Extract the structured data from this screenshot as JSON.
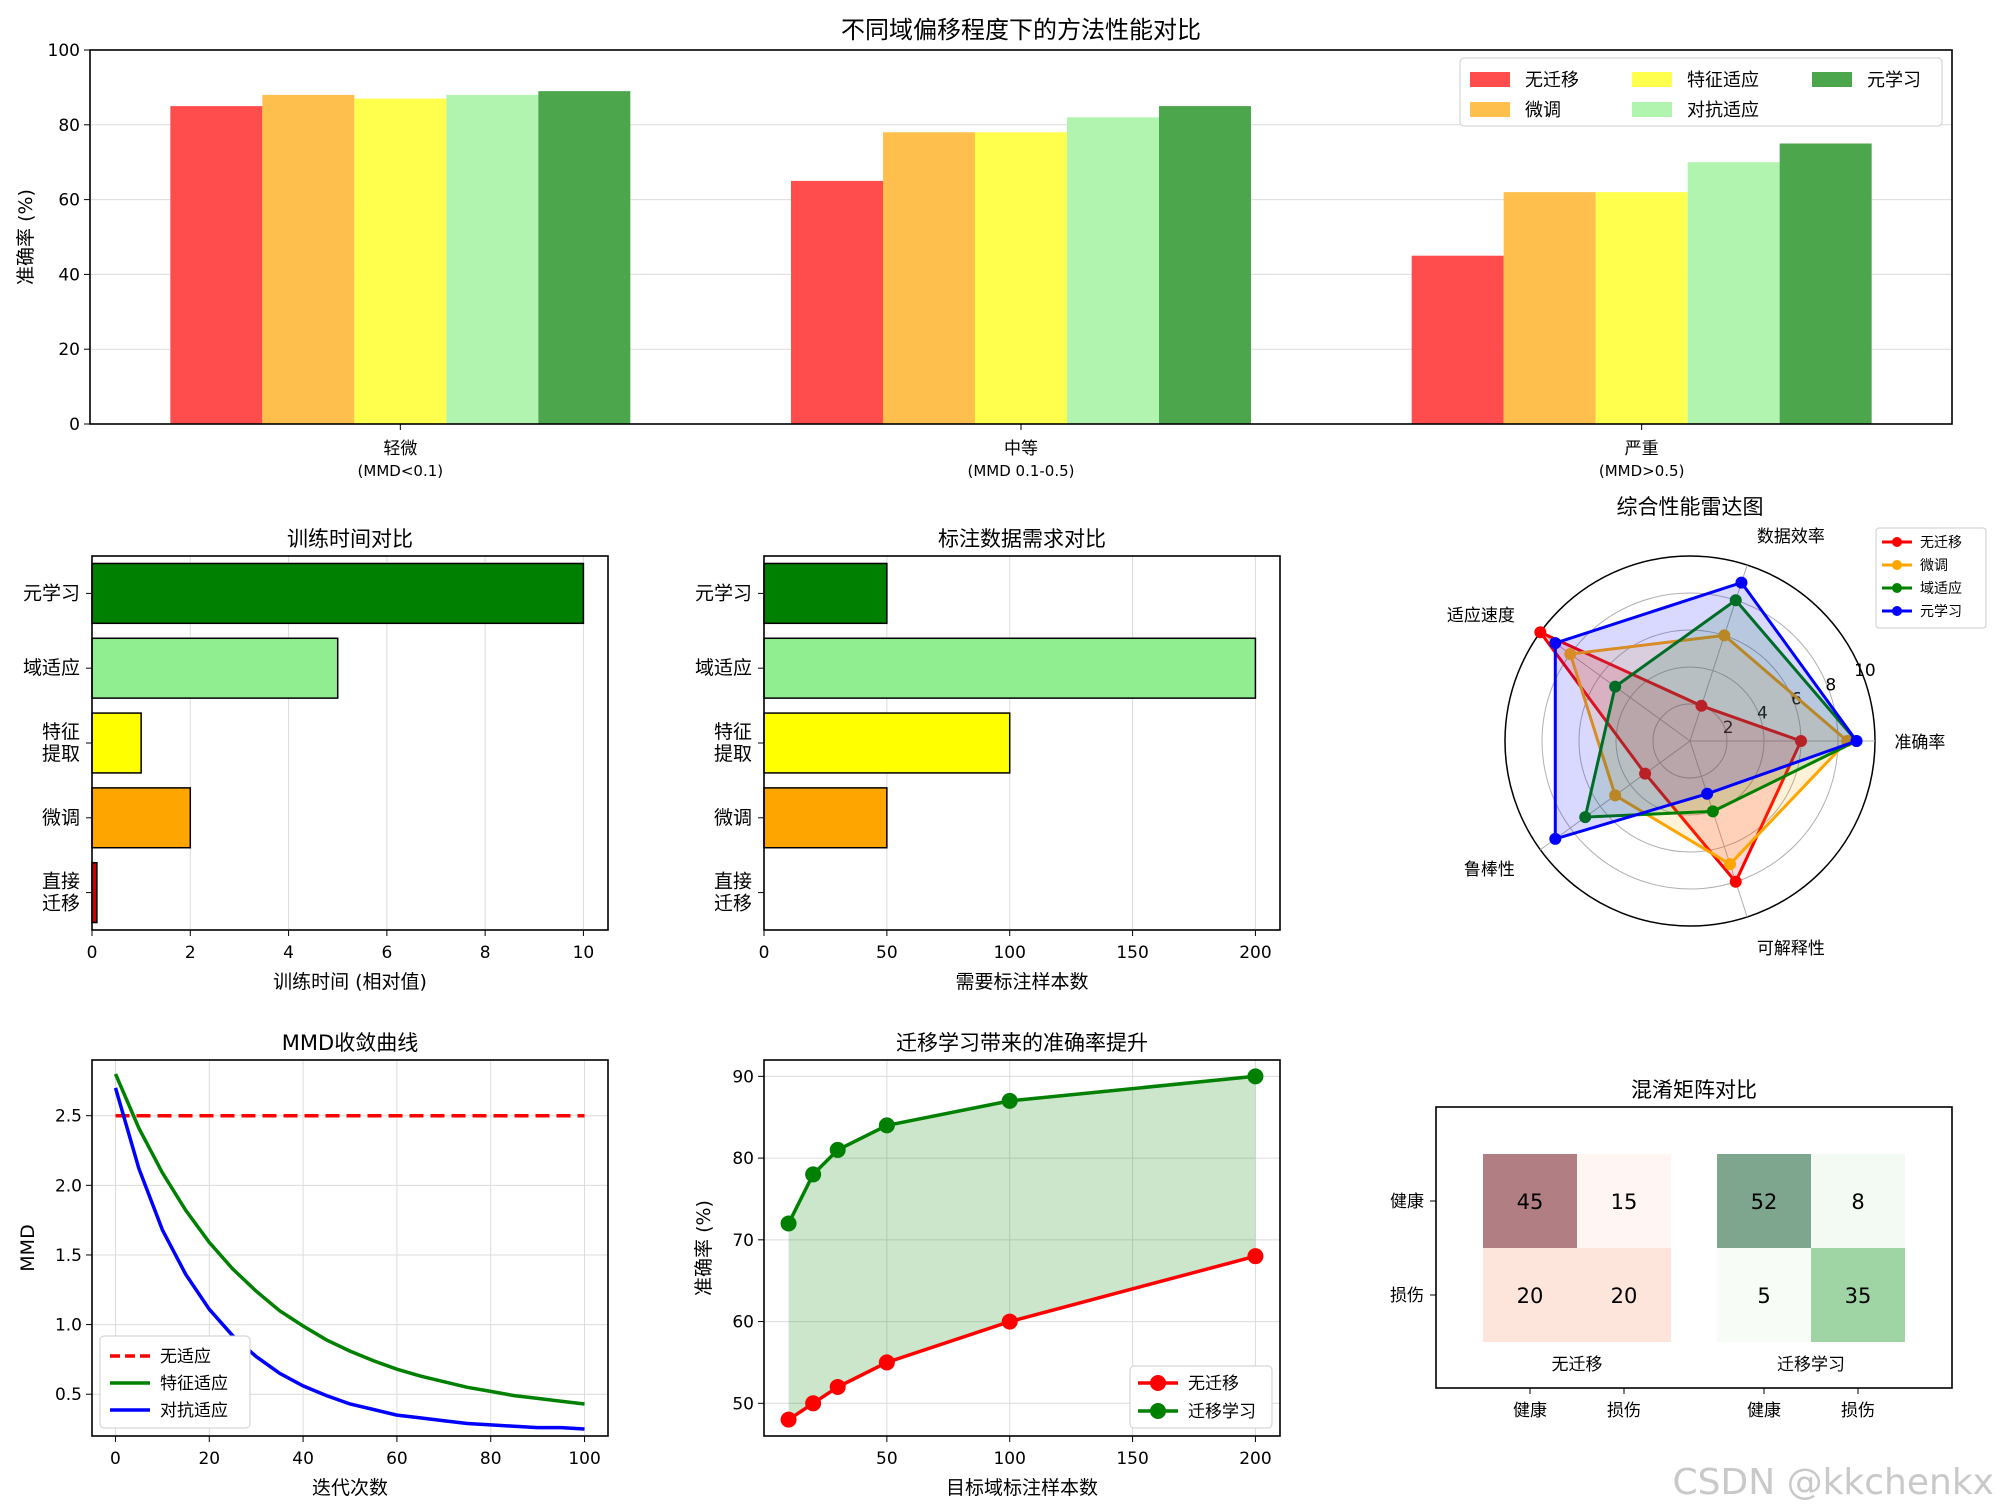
{
  "watermark": "CSDN @kkchenkx",
  "chart_data": [
    {
      "id": "perf",
      "type": "bar",
      "title": "不同域偏移程度下的方法性能对比",
      "ylabel": "准确率 (%)",
      "ylim": [
        0,
        100
      ],
      "yticks": [
        0,
        20,
        40,
        60,
        80,
        100
      ],
      "grid": "y",
      "legend_position": "top-right",
      "categories": [
        {
          "name": "轻微",
          "sub": "(MMD<0.1)"
        },
        {
          "name": "中等",
          "sub": "(MMD 0.1-0.5)"
        },
        {
          "name": "严重",
          "sub": "(MMD>0.5)"
        }
      ],
      "series": [
        {
          "name": "无迁移",
          "color": "#ff4d4d",
          "values": [
            85,
            65,
            45
          ]
        },
        {
          "name": "微调",
          "color": "#ffbf4d",
          "values": [
            88,
            78,
            62
          ]
        },
        {
          "name": "特征适应",
          "color": "#ffff4d",
          "values": [
            87,
            78,
            62
          ]
        },
        {
          "name": "对抗适应",
          "color": "#b0f4b0",
          "values": [
            88,
            82,
            70
          ]
        },
        {
          "name": "元学习",
          "color": "#4ca64c",
          "values": [
            89,
            85,
            75
          ]
        }
      ]
    },
    {
      "id": "time",
      "type": "bar",
      "orientation": "horizontal",
      "title": "训练时间对比",
      "xlabel": "训练时间 (相对值)",
      "xlim": [
        0,
        10.5
      ],
      "xticks": [
        0,
        2,
        4,
        6,
        8,
        10
      ],
      "grid": "x",
      "categories": [
        "直接\n迁移",
        "微调",
        "特征\n提取",
        "域适应",
        "元学习"
      ],
      "values": [
        0.1,
        2,
        1,
        5,
        10
      ],
      "colors": [
        "#cc0000",
        "#ffa500",
        "#ffff00",
        "#90ee90",
        "#008000"
      ]
    },
    {
      "id": "labels",
      "type": "bar",
      "orientation": "horizontal",
      "title": "标注数据需求对比",
      "xlabel": "需要标注样本数",
      "xlim": [
        0,
        210
      ],
      "xticks": [
        0,
        50,
        100,
        150,
        200
      ],
      "grid": "x",
      "categories": [
        "直接\n迁移",
        "微调",
        "特征\n提取",
        "域适应",
        "元学习"
      ],
      "values": [
        0,
        50,
        100,
        200,
        50
      ],
      "colors": [
        "#cc0000",
        "#ffa500",
        "#ffff00",
        "#90ee90",
        "#008000"
      ]
    },
    {
      "id": "radar",
      "type": "radar",
      "title": "综合性能雷达图",
      "axes": [
        "准确率",
        "数据效率",
        "适应速度",
        "鲁棒性",
        "可解释性"
      ],
      "rmax": 10,
      "rticks": [
        2,
        4,
        6,
        8,
        10
      ],
      "legend_position": "top-right",
      "series": [
        {
          "name": "无迁移",
          "color": "#ff0000",
          "values": [
            6,
            2,
            10,
            3,
            8
          ]
        },
        {
          "name": "微调",
          "color": "#ffa500",
          "values": [
            8.5,
            6,
            8,
            5,
            7
          ]
        },
        {
          "name": "域适应",
          "color": "#008000",
          "values": [
            9,
            8,
            5,
            7,
            4
          ]
        },
        {
          "name": "元学习",
          "color": "#0000ff",
          "values": [
            9,
            9,
            9,
            9,
            3
          ]
        }
      ]
    },
    {
      "id": "mmd",
      "type": "line",
      "title": "MMD收敛曲线",
      "xlabel": "迭代次数",
      "ylabel": "MMD",
      "xlim": [
        -5,
        105
      ],
      "ylim": [
        0.2,
        2.9
      ],
      "xticks": [
        0,
        20,
        40,
        60,
        80,
        100
      ],
      "yticks": [
        0.5,
        1.0,
        1.5,
        2.0,
        2.5
      ],
      "grid": true,
      "legend_position": "lower-left",
      "x": [
        0,
        5,
        10,
        15,
        20,
        25,
        30,
        35,
        40,
        45,
        50,
        55,
        60,
        65,
        70,
        75,
        80,
        85,
        90,
        95,
        100
      ],
      "series": [
        {
          "name": "无适应",
          "color": "#ff0000",
          "dash": true,
          "values": [
            2.5,
            2.5,
            2.5,
            2.5,
            2.5,
            2.5,
            2.5,
            2.5,
            2.5,
            2.5,
            2.5,
            2.5,
            2.5,
            2.5,
            2.5,
            2.5,
            2.5,
            2.5,
            2.5,
            2.5,
            2.5
          ]
        },
        {
          "name": "特征适应",
          "color": "#008000",
          "values": [
            2.8,
            2.41,
            2.09,
            1.82,
            1.59,
            1.4,
            1.24,
            1.1,
            0.99,
            0.89,
            0.81,
            0.74,
            0.68,
            0.63,
            0.59,
            0.55,
            0.52,
            0.49,
            0.47,
            0.45,
            0.43
          ]
        },
        {
          "name": "对抗适应",
          "color": "#0000ff",
          "values": [
            2.7,
            2.12,
            1.68,
            1.36,
            1.11,
            0.92,
            0.77,
            0.65,
            0.56,
            0.49,
            0.43,
            0.39,
            0.35,
            0.33,
            0.31,
            0.29,
            0.28,
            0.27,
            0.26,
            0.26,
            0.25
          ]
        }
      ]
    },
    {
      "id": "gain",
      "type": "area",
      "title": "迁移学习带来的准确率提升",
      "xlabel": "目标域标注样本数",
      "ylabel": "准确率 (%)",
      "xlim": [
        0,
        210
      ],
      "ylim": [
        46,
        92
      ],
      "xticks": [
        50,
        100,
        150,
        200
      ],
      "yticks": [
        50,
        60,
        70,
        80,
        90
      ],
      "grid": true,
      "legend_position": "lower-right",
      "x": [
        10,
        20,
        30,
        50,
        100,
        200
      ],
      "series": [
        {
          "name": "无迁移",
          "color": "#ff0000",
          "values": [
            48,
            50,
            52,
            55,
            60,
            68
          ]
        },
        {
          "name": "迁移学习",
          "color": "#008000",
          "values": [
            72,
            78,
            81,
            84,
            87,
            90
          ]
        }
      ]
    },
    {
      "id": "confusion",
      "type": "heatmap",
      "title": "混淆矩阵对比",
      "row_labels": [
        "健康",
        "损伤"
      ],
      "col_labels": [
        "健康",
        "损伤",
        "健康",
        "损伤"
      ],
      "matrices": [
        {
          "name": "无迁移",
          "color": "#ff0000",
          "values": [
            [
              45,
              15
            ],
            [
              20,
              20
            ]
          ],
          "cell_colors": [
            [
              "#b17f83",
              "#fff5f2"
            ],
            [
              "#fde5dc",
              "#fde5dc"
            ]
          ]
        },
        {
          "name": "迁移学习",
          "color": "#008000",
          "values": [
            [
              52,
              8
            ],
            [
              5,
              35
            ]
          ],
          "cell_colors": [
            [
              "#7ea68f",
              "#f3faf3"
            ],
            [
              "#f7fcf6",
              "#9fd4a5"
            ]
          ]
        }
      ]
    }
  ]
}
